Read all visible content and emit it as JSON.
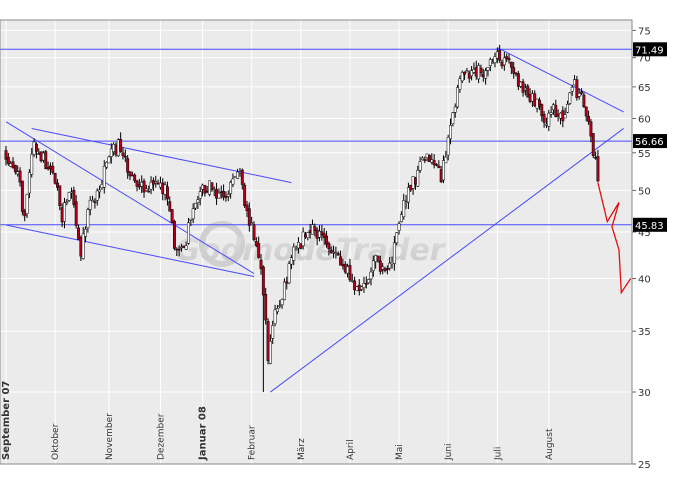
{
  "watermark": "GodmodeTrader",
  "chart_data": {
    "type": "candlestick",
    "y_axis": {
      "scale": "log",
      "ylim": [
        25,
        77
      ],
      "ticks": [
        25,
        30,
        35,
        40,
        45,
        50,
        55,
        60,
        65,
        70,
        75
      ],
      "position": "right"
    },
    "x_axis": {
      "months": [
        "September 07",
        "Oktober",
        "November",
        "Dezember",
        "Januar 08",
        "Februar",
        "März",
        "April",
        "Mai",
        "Juni",
        "Juli",
        "August"
      ],
      "bold_months": [
        "September 07",
        "Januar 08"
      ],
      "month_start_index": [
        0,
        21,
        44,
        66,
        84,
        105,
        126,
        147,
        168,
        189,
        210,
        232
      ]
    },
    "grid": true,
    "colors": {
      "up": "#ffffff",
      "down": "#b00018",
      "wick": "#000000",
      "trendline": "#4a4aff",
      "projection": "#e01010",
      "label_bg": "#000000",
      "label_text": "#ffffff"
    },
    "horizontal_levels": [
      {
        "value": 71.49,
        "label": "71.49"
      },
      {
        "value": 56.66,
        "label": "56.66"
      },
      {
        "value": 45.83,
        "label": "45.83"
      }
    ],
    "trendlines": [
      {
        "from": [
          0,
          59.5
        ],
        "to": [
          106,
          40.5
        ]
      },
      {
        "from": [
          0,
          45.8
        ],
        "to": [
          106,
          40.2
        ]
      },
      {
        "from": [
          11,
          58.5
        ],
        "to": [
          122,
          51.0
        ]
      },
      {
        "from": [
          113,
          30.0
        ],
        "to": [
          264,
          58.5
        ]
      },
      {
        "from": [
          210,
          71.8
        ],
        "to": [
          264,
          61.0
        ]
      }
    ],
    "projection": [
      [
        253,
        51.0
      ],
      [
        257,
        46.2
      ],
      [
        262,
        48.5
      ],
      [
        259,
        45.6
      ],
      [
        262,
        43.0
      ],
      [
        263,
        38.6
      ],
      [
        267,
        40.0
      ]
    ],
    "close_anchors": [
      [
        0,
        55
      ],
      [
        5,
        53
      ],
      [
        8,
        46
      ],
      [
        12,
        57
      ],
      [
        16,
        54
      ],
      [
        20,
        52
      ],
      [
        24,
        47
      ],
      [
        28,
        50
      ],
      [
        32,
        43
      ],
      [
        36,
        49
      ],
      [
        40,
        50
      ],
      [
        44,
        55
      ],
      [
        48,
        56
      ],
      [
        52,
        53
      ],
      [
        56,
        51
      ],
      [
        60,
        50
      ],
      [
        64,
        52
      ],
      [
        68,
        50
      ],
      [
        72,
        44
      ],
      [
        76,
        43
      ],
      [
        80,
        48
      ],
      [
        84,
        50
      ],
      [
        88,
        51
      ],
      [
        92,
        49
      ],
      [
        96,
        51
      ],
      [
        100,
        52
      ],
      [
        104,
        46
      ],
      [
        108,
        43
      ],
      [
        110,
        38
      ],
      [
        112,
        33
      ],
      [
        114,
        36
      ],
      [
        118,
        38
      ],
      [
        122,
        42
      ],
      [
        126,
        44
      ],
      [
        130,
        45
      ],
      [
        134,
        45
      ],
      [
        138,
        43
      ],
      [
        142,
        42
      ],
      [
        146,
        41
      ],
      [
        150,
        39
      ],
      [
        154,
        40
      ],
      [
        158,
        42
      ],
      [
        162,
        41
      ],
      [
        166,
        43
      ],
      [
        170,
        49
      ],
      [
        174,
        51
      ],
      [
        178,
        54
      ],
      [
        182,
        55
      ],
      [
        186,
        52
      ],
      [
        190,
        58
      ],
      [
        194,
        66
      ],
      [
        198,
        67
      ],
      [
        202,
        68
      ],
      [
        206,
        68
      ],
      [
        210,
        70
      ],
      [
        214,
        69
      ],
      [
        218,
        67
      ],
      [
        222,
        64
      ],
      [
        226,
        63
      ],
      [
        230,
        60
      ],
      [
        234,
        61
      ],
      [
        238,
        60
      ],
      [
        242,
        66
      ],
      [
        246,
        63
      ],
      [
        250,
        58
      ],
      [
        253,
        51
      ]
    ]
  }
}
